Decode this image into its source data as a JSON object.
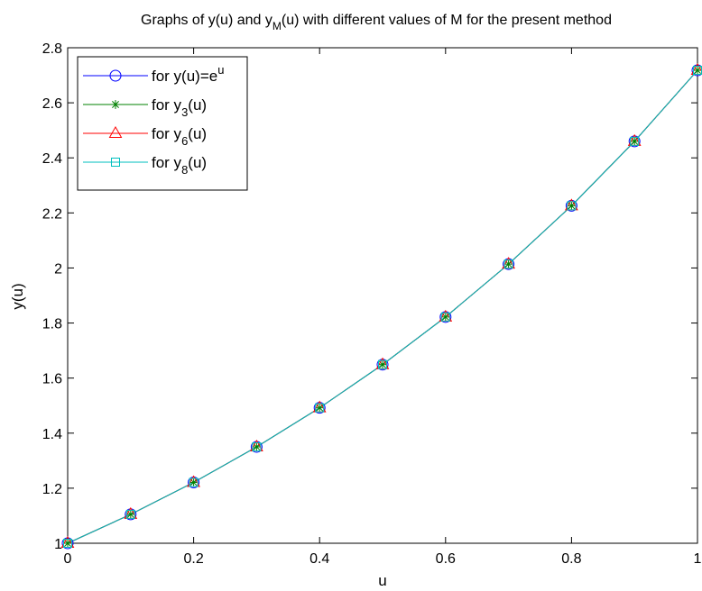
{
  "chart_data": {
    "type": "line",
    "title": {
      "pre": "Graphs of y(u) and y",
      "sub": "M",
      "post": "(u) with different values of M for the present method"
    },
    "xlabel": "u",
    "ylabel": "y(u)",
    "xlim": [
      0,
      1
    ],
    "ylim": [
      1,
      2.8
    ],
    "xticks": [
      0,
      0.2,
      0.4,
      0.6,
      0.8,
      1
    ],
    "xtick_labels": [
      "0",
      "0.2",
      "0.4",
      "0.6",
      "0.8",
      "1"
    ],
    "yticks": [
      1,
      1.2,
      1.4,
      1.6,
      1.8,
      2,
      2.2,
      2.4,
      2.6,
      2.8
    ],
    "ytick_labels": [
      "1",
      "1.2",
      "1.4",
      "1.6",
      "1.8",
      "2",
      "2.2",
      "2.4",
      "2.6",
      "2.8"
    ],
    "grid": false,
    "legend_position": "top-left",
    "x": [
      0,
      0.1,
      0.2,
      0.3,
      0.4,
      0.5,
      0.6,
      0.7,
      0.8,
      0.9,
      1.0
    ],
    "series": [
      {
        "legend": {
          "pre": "for y(u)=e",
          "sup": "u",
          "sub": "",
          "post": ""
        },
        "color": "#0000ff",
        "marker": "circle",
        "values": [
          1.0,
          1.105,
          1.221,
          1.35,
          1.492,
          1.649,
          1.822,
          2.014,
          2.226,
          2.46,
          2.718
        ]
      },
      {
        "legend": {
          "pre": "for y",
          "sup": "",
          "sub": "3",
          "post": "(u)"
        },
        "color": "#008000",
        "marker": "star",
        "values": [
          1.0,
          1.105,
          1.221,
          1.35,
          1.492,
          1.649,
          1.822,
          2.014,
          2.226,
          2.46,
          2.718
        ]
      },
      {
        "legend": {
          "pre": "for y",
          "sup": "",
          "sub": "6",
          "post": "(u)"
        },
        "color": "#ff0000",
        "marker": "triangle",
        "values": [
          1.0,
          1.105,
          1.221,
          1.35,
          1.492,
          1.649,
          1.822,
          2.014,
          2.226,
          2.46,
          2.718
        ]
      },
      {
        "legend": {
          "pre": "for y",
          "sup": "",
          "sub": "8",
          "post": "(u)"
        },
        "color": "#00bfbf",
        "marker": "square",
        "values": [
          1.0,
          1.105,
          1.221,
          1.35,
          1.492,
          1.649,
          1.822,
          2.014,
          2.226,
          2.46,
          2.718
        ]
      }
    ]
  }
}
